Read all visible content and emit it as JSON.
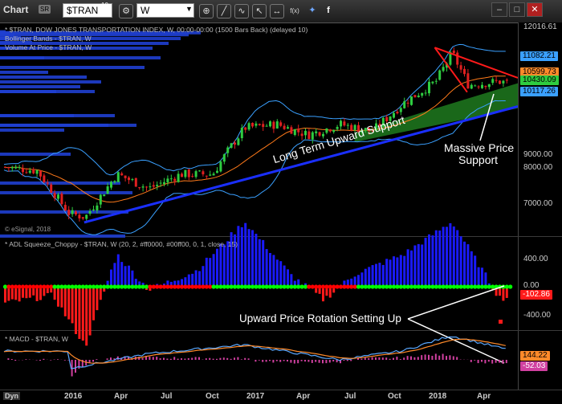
{
  "toolbar": {
    "title": "Chart",
    "badge": "SR",
    "symbol": "$TRAN",
    "symbol_sup": "10",
    "interval": "W",
    "icon_names": [
      "gear-icon",
      "crosshair-icon",
      "line-draw-icon",
      "curve-icon",
      "cursor-icon",
      "arrows-icon",
      "fx-icon",
      "twitter-icon",
      "facebook-icon"
    ]
  },
  "colors": {
    "background": "#000000",
    "up_candle": "#2ecc40",
    "down_candle": "#e02020",
    "upper_band": "#3aa0ff",
    "middle_band": "#ff7a1a",
    "volume_profile": "#1f3fd0",
    "support_line": "#1a2fff",
    "resistance_line": "#ff1a1a",
    "support_zone": "#1f7a1f",
    "adl_positive": "#1a1aff",
    "adl_negative": "#ff1a1a",
    "squeeze_on": "#00ff00",
    "squeeze_off": "#ff0000",
    "macd_line": "#5aa8ff",
    "signal_line": "#ff8a2a",
    "histogram": "#d040a0"
  },
  "price_pane": {
    "legend": [
      "* $TRAN, DOW JONES TRANSPORTATION INDEX, W, 00:00-00:00 (1500 Bars Back) (delayed 10)",
      "Bollinger Bands - $TRAN, W",
      "Volume At Price - $TRAN, W"
    ],
    "copyright": "© eSignal, 2018",
    "axis_labels": [
      "12016.61",
      "9000.00",
      "8000.00",
      "7000.00"
    ],
    "price_tags": [
      {
        "label": "11082.21",
        "color": "#3aa0ff",
        "text_color": "#000000"
      },
      {
        "label": "10599.73",
        "color": "#ff8a2a",
        "text_color": "#000000"
      },
      {
        "label": "10430.09",
        "color": "#2ecc40",
        "text_color": "#000000"
      },
      {
        "label": "10117.26",
        "color": "#3aa0ff",
        "text_color": "#000000"
      }
    ],
    "annotations": {
      "support_text": "Long Term Upward Support",
      "massive_line1": "Massive Price",
      "massive_line2": "Support"
    }
  },
  "adl_pane": {
    "legend": "* ADL Squeeze_Choppy - $TRAN, W (20, 2, #ff0000, #00ff00, 0, 1, close, 15)",
    "axis_labels": [
      "400.00",
      "0.00",
      "-400.00"
    ],
    "value_tag": "-102.86",
    "annotation": "Upward Price Rotation Setting Up"
  },
  "macd_pane": {
    "legend": "* MACD - $TRAN, W",
    "tags": [
      {
        "label": "144.22",
        "color": "#ff8a2a",
        "text_color": "#000000"
      },
      {
        "label": "-52.03",
        "color": "#d040a0",
        "text_color": "#ffffff"
      }
    ]
  },
  "x_axis": {
    "labels": [
      "2016",
      "Apr",
      "Jul",
      "Oct",
      "2017",
      "Apr",
      "Jul",
      "Oct",
      "2018",
      "Apr"
    ],
    "dyn_label": "Dyn"
  },
  "chart_data": [
    {
      "type": "candlestick",
      "title": "$TRAN, DOW JONES TRANSPORTATION INDEX, W",
      "x_range": [
        "2015-09",
        "2018-05"
      ],
      "ylim": [
        6300,
        12016.61
      ],
      "overlays": [
        "Bollinger Bands",
        "Volume At Price"
      ],
      "close_approx": [
        {
          "x": "2015-09",
          "y": 8100
        },
        {
          "x": "2015-11",
          "y": 8000
        },
        {
          "x": "2016-01",
          "y": 6800
        },
        {
          "x": "2016-02",
          "y": 6700
        },
        {
          "x": "2016-04",
          "y": 7900
        },
        {
          "x": "2016-06",
          "y": 7500
        },
        {
          "x": "2016-08",
          "y": 7900
        },
        {
          "x": "2016-10",
          "y": 7900
        },
        {
          "x": "2016-11",
          "y": 8600
        },
        {
          "x": "2016-12",
          "y": 9200
        },
        {
          "x": "2017-02",
          "y": 9300
        },
        {
          "x": "2017-04",
          "y": 9000
        },
        {
          "x": "2017-06",
          "y": 9300
        },
        {
          "x": "2017-08",
          "y": 9100
        },
        {
          "x": "2017-10",
          "y": 9900
        },
        {
          "x": "2017-12",
          "y": 10500
        },
        {
          "x": "2018-01",
          "y": 11300
        },
        {
          "x": "2018-02",
          "y": 10400
        },
        {
          "x": "2018-04",
          "y": 10500
        },
        {
          "x": "2018-05",
          "y": 10430.09
        }
      ]
    },
    {
      "type": "bar",
      "title": "ADL Squeeze_Choppy - $TRAN, W",
      "ylim": [
        -700,
        700
      ],
      "values_approx": [
        {
          "x": "2015-09",
          "y": -150
        },
        {
          "x": "2015-12",
          "y": -80
        },
        {
          "x": "2016-02",
          "y": -550
        },
        {
          "x": "2016-04",
          "y": 300
        },
        {
          "x": "2016-06",
          "y": -30
        },
        {
          "x": "2016-09",
          "y": 150
        },
        {
          "x": "2016-12",
          "y": 600
        },
        {
          "x": "2017-03",
          "y": 100
        },
        {
          "x": "2017-05",
          "y": -120
        },
        {
          "x": "2017-07",
          "y": 120
        },
        {
          "x": "2017-10",
          "y": 300
        },
        {
          "x": "2018-01",
          "y": 600
        },
        {
          "x": "2018-04",
          "y": -100
        },
        {
          "x": "2018-05",
          "y": -102.86
        }
      ]
    },
    {
      "type": "line",
      "title": "MACD - $TRAN, W",
      "series": [
        {
          "name": "MACD",
          "values_approx": [
            {
              "x": "2016-01",
              "y": -150
            },
            {
              "x": "2016-06",
              "y": 100
            },
            {
              "x": "2016-12",
              "y": 250
            },
            {
              "x": "2017-06",
              "y": 0
            },
            {
              "x": "2017-10",
              "y": 150
            },
            {
              "x": "2018-01",
              "y": 400
            },
            {
              "x": "2018-05",
              "y": 144.22
            }
          ]
        },
        {
          "name": "Histogram",
          "values_approx": [
            {
              "x": "2016-02",
              "y": -80
            },
            {
              "x": "2016-11",
              "y": 100
            },
            {
              "x": "2017-05",
              "y": -60
            },
            {
              "x": "2018-01",
              "y": 120
            },
            {
              "x": "2018-05",
              "y": -52.03
            }
          ]
        }
      ]
    }
  ]
}
